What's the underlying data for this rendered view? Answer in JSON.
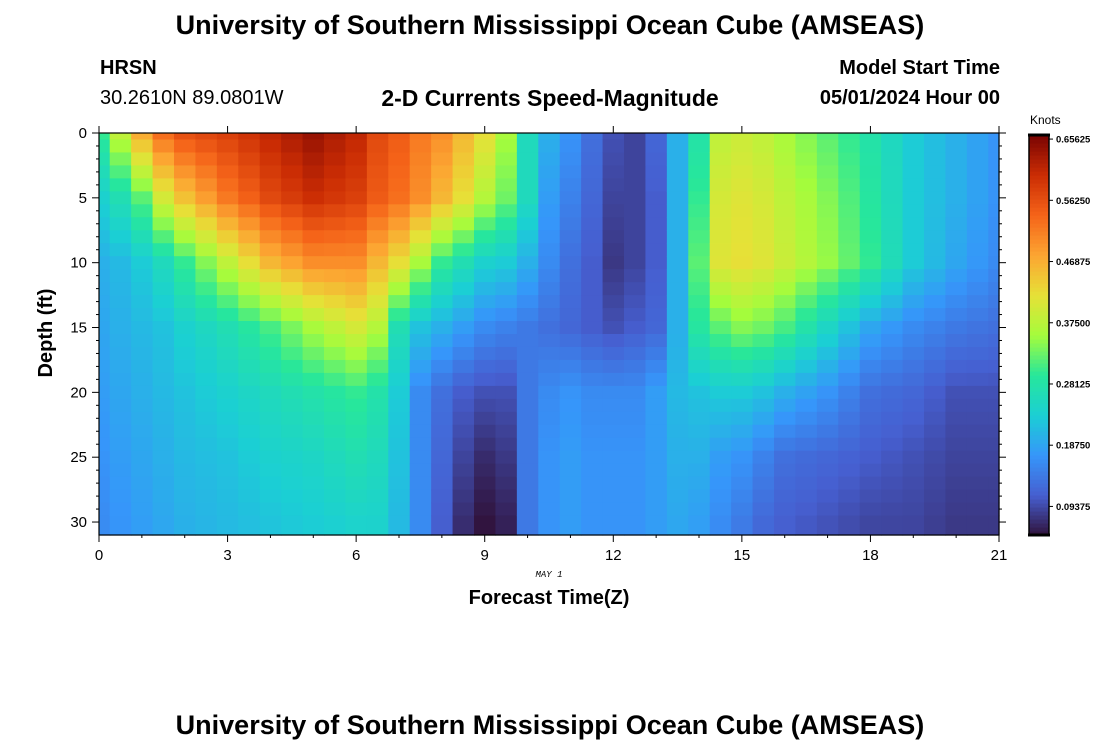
{
  "header": {
    "title": "University of Southern Mississippi Ocean Cube (AMSEAS)",
    "station": "HRSN",
    "coords": "30.2610N  89.0801W",
    "plot_title": "2-D Currents Speed-Magnitude",
    "model_start_label": "Model Start Time",
    "model_start_value": "05/01/2024 Hour 00"
  },
  "footer": {
    "title": "University of Southern Mississippi Ocean Cube (AMSEAS)"
  },
  "chart_data": {
    "type": "heatmap",
    "xlabel": "Forecast Time(Z)",
    "ylabel": "Depth (ft)",
    "date_label": "MAY 1",
    "xlim": [
      0,
      21
    ],
    "ylim": [
      0,
      31
    ],
    "x_ticks": [
      0,
      3,
      6,
      9,
      12,
      15,
      18,
      21
    ],
    "y_ticks": [
      0,
      5,
      10,
      15,
      20,
      25,
      30
    ],
    "colorbar": {
      "label": "Knots",
      "range": [
        0.05,
        0.6625
      ],
      "ticks": [
        "0.65625",
        "0.56250",
        "0.46875",
        "0.37500",
        "0.28125",
        "0.18750",
        "0.09375"
      ]
    },
    "time_columns": [
      0,
      0.5,
      1,
      1.5,
      2,
      2.5,
      3,
      3.5,
      4,
      4.5,
      5,
      5.5,
      6,
      6.5,
      7,
      7.5,
      8,
      8.5,
      9,
      9.5,
      10,
      10.5,
      11,
      11.5,
      12,
      12.5,
      13,
      13.5,
      14,
      14.5,
      15,
      15.5,
      16,
      16.5,
      17,
      17.5,
      18,
      18.5,
      19,
      19.5,
      20,
      20.5,
      21
    ],
    "depth_rows_ft": [
      0,
      1,
      2,
      3,
      4,
      5,
      6,
      7,
      8,
      9,
      10,
      11,
      12,
      13,
      14,
      15,
      16,
      17,
      18,
      19,
      20,
      21,
      22,
      23,
      24,
      25,
      26,
      27,
      28,
      29,
      30
    ],
    "control_speeds": {
      "depths_ft": [
        0,
        5,
        10,
        15,
        20,
        25,
        30.5
      ],
      "by_time": [
        {
          "t": 0,
          "v": [
            0.3,
            0.24,
            0.2,
            0.19,
            0.18,
            0.17,
            0.16
          ]
        },
        {
          "t": 0.5,
          "v": [
            0.38,
            0.27,
            0.21,
            0.2,
            0.19,
            0.18,
            0.17
          ]
        },
        {
          "t": 1,
          "v": [
            0.47,
            0.32,
            0.23,
            0.21,
            0.2,
            0.19,
            0.18
          ]
        },
        {
          "t": 1.5,
          "v": [
            0.53,
            0.4,
            0.26,
            0.22,
            0.21,
            0.2,
            0.19
          ]
        },
        {
          "t": 2,
          "v": [
            0.56,
            0.45,
            0.3,
            0.24,
            0.22,
            0.21,
            0.2
          ]
        },
        {
          "t": 3,
          "v": [
            0.58,
            0.52,
            0.38,
            0.27,
            0.24,
            0.22,
            0.21
          ]
        },
        {
          "t": 4,
          "v": [
            0.61,
            0.57,
            0.46,
            0.31,
            0.26,
            0.24,
            0.22
          ]
        },
        {
          "t": 5,
          "v": [
            0.64,
            0.6,
            0.5,
            0.36,
            0.28,
            0.25,
            0.23
          ]
        },
        {
          "t": 6,
          "v": [
            0.61,
            0.58,
            0.5,
            0.4,
            0.3,
            0.27,
            0.24
          ]
        },
        {
          "t": 6.5,
          "v": [
            0.57,
            0.55,
            0.46,
            0.37,
            0.28,
            0.26,
            0.24
          ]
        },
        {
          "t": 7,
          "v": [
            0.55,
            0.53,
            0.42,
            0.27,
            0.23,
            0.22,
            0.21
          ]
        },
        {
          "t": 7.5,
          "v": [
            0.52,
            0.5,
            0.36,
            0.22,
            0.16,
            0.16,
            0.16
          ]
        },
        {
          "t": 8,
          "v": [
            0.5,
            0.46,
            0.3,
            0.2,
            0.13,
            0.12,
            0.11
          ]
        },
        {
          "t": 8.5,
          "v": [
            0.46,
            0.42,
            0.27,
            0.18,
            0.11,
            0.09,
            0.07
          ]
        },
        {
          "t": 9,
          "v": [
            0.42,
            0.37,
            0.24,
            0.16,
            0.1,
            0.07,
            0.05
          ]
        },
        {
          "t": 9.5,
          "v": [
            0.36,
            0.33,
            0.23,
            0.15,
            0.1,
            0.08,
            0.06
          ]
        },
        {
          "t": 10,
          "v": [
            0.26,
            0.26,
            0.2,
            0.14,
            0.14,
            0.14,
            0.14
          ]
        },
        {
          "t": 10.5,
          "v": [
            0.2,
            0.18,
            0.16,
            0.13,
            0.16,
            0.17,
            0.17
          ]
        },
        {
          "t": 11,
          "v": [
            0.17,
            0.15,
            0.13,
            0.12,
            0.17,
            0.18,
            0.18
          ]
        },
        {
          "t": 11.5,
          "v": [
            0.13,
            0.12,
            0.11,
            0.11,
            0.16,
            0.17,
            0.17
          ]
        },
        {
          "t": 12,
          "v": [
            0.1,
            0.09,
            0.08,
            0.1,
            0.16,
            0.17,
            0.17
          ]
        },
        {
          "t": 12.5,
          "v": [
            0.09,
            0.09,
            0.09,
            0.11,
            0.16,
            0.17,
            0.17
          ]
        },
        {
          "t": 13,
          "v": [
            0.12,
            0.11,
            0.11,
            0.12,
            0.18,
            0.18,
            0.18
          ]
        },
        {
          "t": 13.5,
          "v": [
            0.2,
            0.2,
            0.2,
            0.2,
            0.21,
            0.2,
            0.19
          ]
        },
        {
          "t": 14,
          "v": [
            0.28,
            0.3,
            0.32,
            0.29,
            0.22,
            0.2,
            0.18
          ]
        },
        {
          "t": 14.5,
          "v": [
            0.38,
            0.4,
            0.41,
            0.32,
            0.23,
            0.18,
            0.16
          ]
        },
        {
          "t": 15,
          "v": [
            0.39,
            0.41,
            0.42,
            0.34,
            0.23,
            0.17,
            0.14
          ]
        },
        {
          "t": 15.5,
          "v": [
            0.38,
            0.4,
            0.41,
            0.33,
            0.22,
            0.15,
            0.12
          ]
        },
        {
          "t": 16,
          "v": [
            0.36,
            0.38,
            0.39,
            0.31,
            0.2,
            0.13,
            0.11
          ]
        },
        {
          "t": 17,
          "v": [
            0.32,
            0.34,
            0.35,
            0.25,
            0.17,
            0.12,
            0.1
          ]
        },
        {
          "t": 18,
          "v": [
            0.28,
            0.29,
            0.3,
            0.19,
            0.13,
            0.11,
            0.09
          ]
        },
        {
          "t": 19,
          "v": [
            0.23,
            0.23,
            0.23,
            0.16,
            0.12,
            0.1,
            0.09
          ]
        },
        {
          "t": 20,
          "v": [
            0.2,
            0.2,
            0.19,
            0.14,
            0.1,
            0.09,
            0.08
          ]
        },
        {
          "t": 21,
          "v": [
            0.17,
            0.17,
            0.16,
            0.13,
            0.1,
            0.09,
            0.08
          ]
        }
      ]
    }
  }
}
